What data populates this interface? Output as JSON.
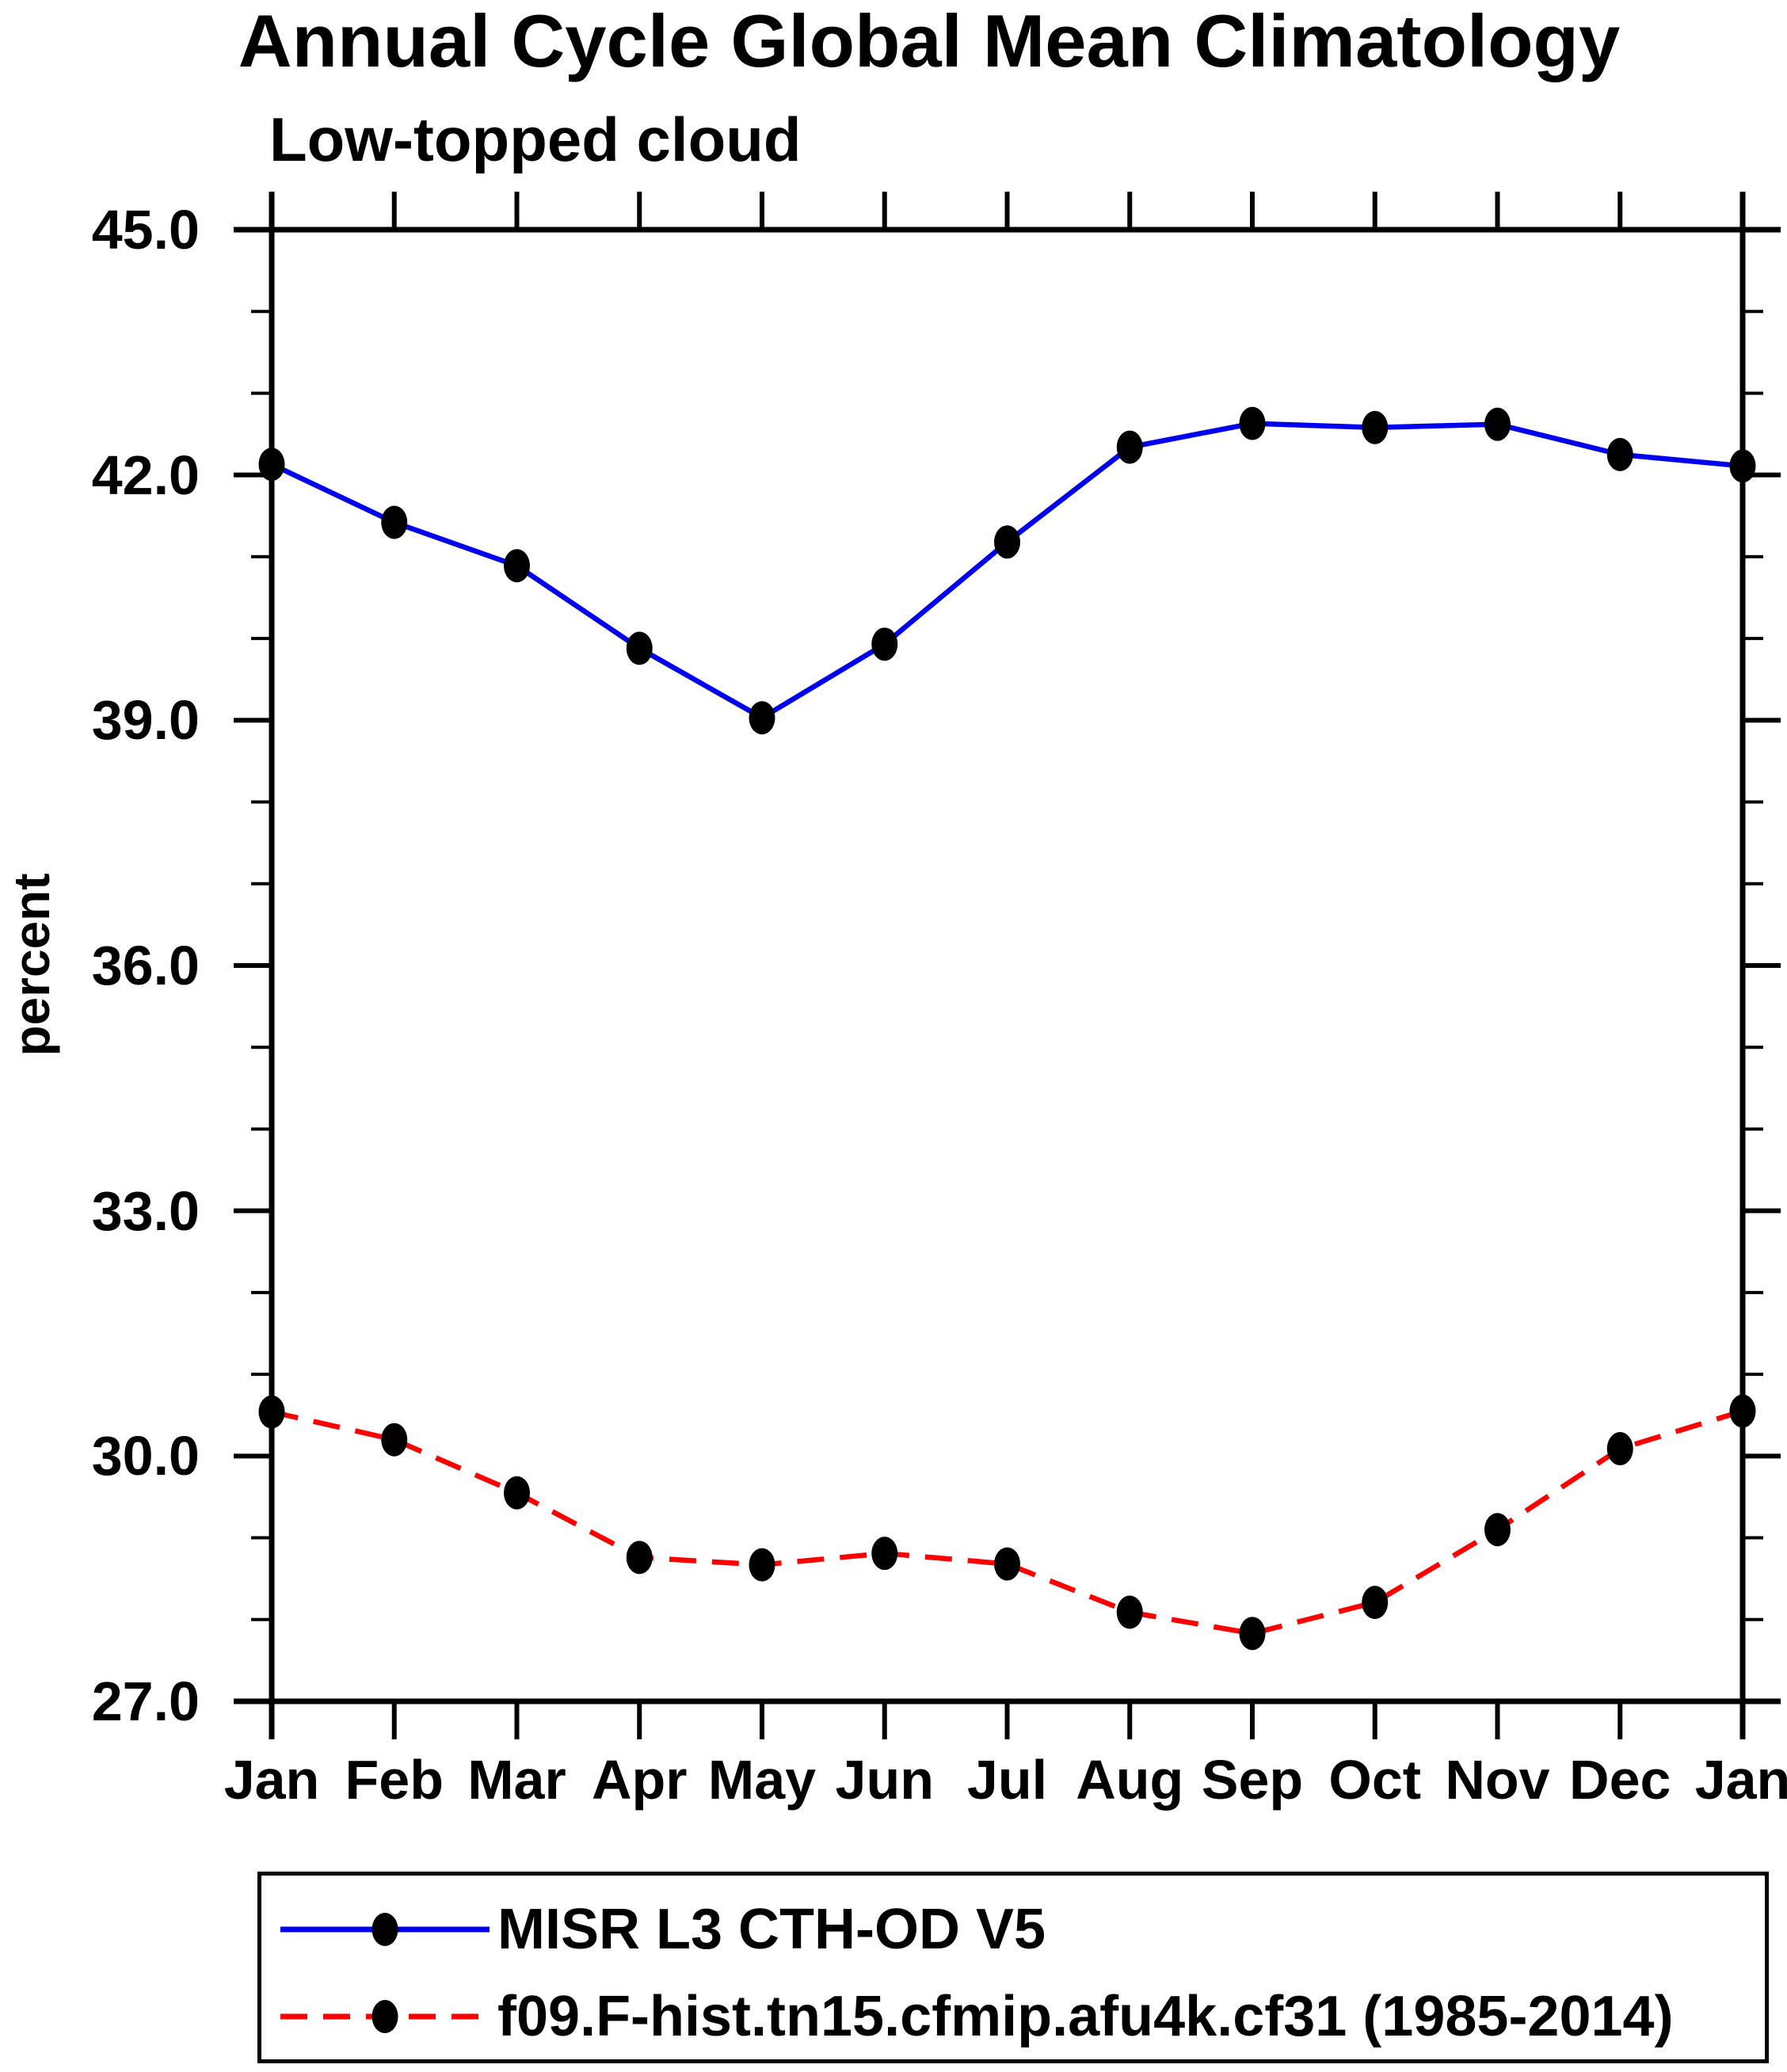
{
  "chart": {
    "title": "Annual Cycle Global Mean Climatology",
    "subtitle": "Low-topped cloud",
    "ylabel": "percent"
  },
  "colors": {
    "obs_line": "#0000ee",
    "model_line": "#ff0000",
    "marker": "#000000",
    "axis": "#000000",
    "background": "#ffffff"
  },
  "chart_data": {
    "type": "line",
    "x_categories": [
      "Jan",
      "Feb",
      "Mar",
      "Apr",
      "May",
      "Jun",
      "Jul",
      "Aug",
      "Sep",
      "Oct",
      "Nov",
      "Dec",
      "Jan"
    ],
    "xlabel": "",
    "ylabel": "percent",
    "ylim": [
      27.0,
      45.0
    ],
    "y_major_ticks": [
      27.0,
      30.0,
      33.0,
      36.0,
      39.0,
      42.0,
      45.0
    ],
    "y_tick_labels": [
      "27.0",
      "30.0",
      "33.0",
      "36.0",
      "39.0",
      "42.0",
      "45.0"
    ],
    "y_minor_step": 1.0,
    "grid": false,
    "legend_position": "below-left",
    "series": [
      {
        "name": "MISR L3 CTH-OD V5",
        "color": "#0000ee",
        "style": "solid",
        "marker": "black-dot",
        "values": [
          42.13,
          41.42,
          40.89,
          39.88,
          39.03,
          39.93,
          41.18,
          42.34,
          42.63,
          42.58,
          42.62,
          42.25,
          42.11
        ]
      },
      {
        "name": "f09.F-hist.tn15.cfmip.afu4k.cf31 (1985-2014)",
        "color": "#ff0000",
        "style": "dashed",
        "marker": "black-dot",
        "values": [
          30.54,
          30.2,
          29.55,
          28.76,
          28.67,
          28.81,
          28.68,
          28.09,
          27.83,
          28.21,
          29.1,
          30.09,
          30.55
        ]
      }
    ]
  }
}
